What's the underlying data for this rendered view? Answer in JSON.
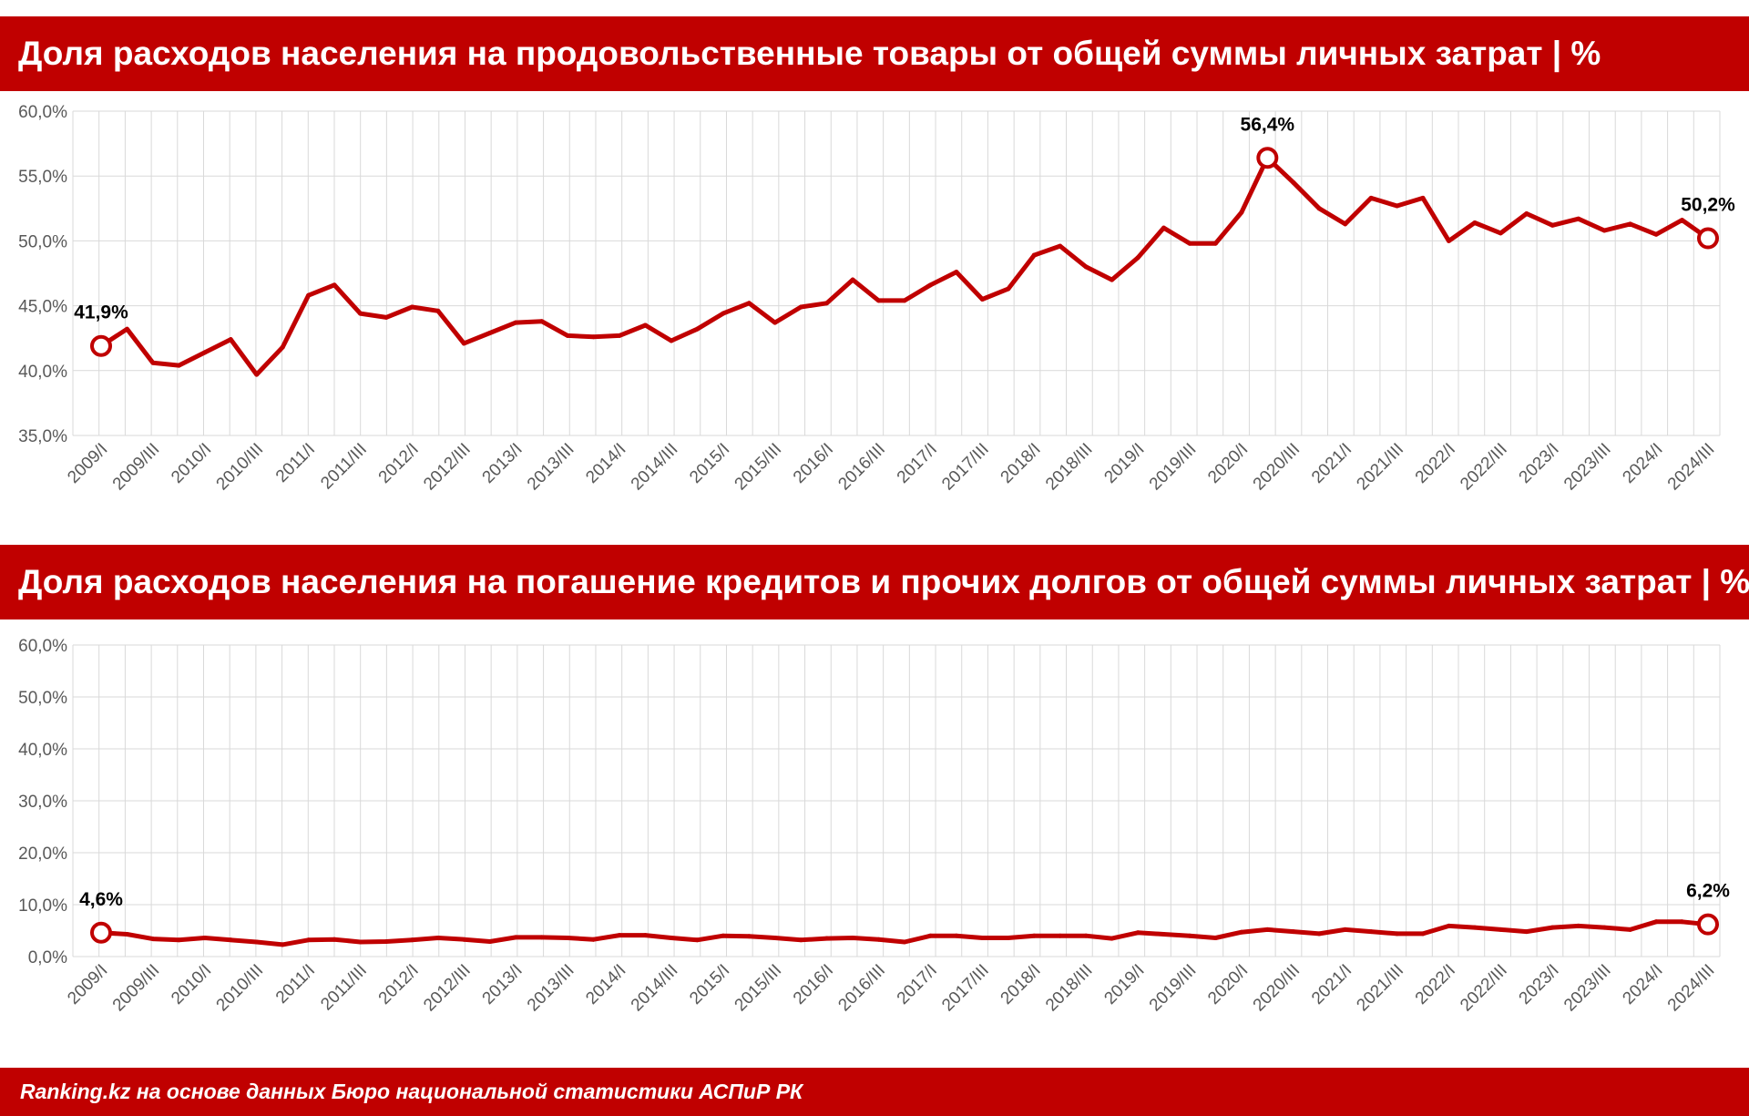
{
  "footer": "Ranking.kz на основе данных Бюро национальной статистики АСПиР РК",
  "colors": {
    "accent": "#c00000",
    "line": "#c00000",
    "grid": "#d9d9d9"
  },
  "chart_data": [
    {
      "type": "line",
      "title": "Доля расходов населения на продовольственные товары от общей суммы личных затрат | %",
      "ylim": [
        35,
        60
      ],
      "yticks": [
        "35,0%",
        "40,0%",
        "45,0%",
        "50,0%",
        "55,0%",
        "60,0%"
      ],
      "ytick_values": [
        35,
        40,
        45,
        50,
        55,
        60
      ],
      "grid": true,
      "x": [
        "2009/I",
        "2009/II",
        "2009/III",
        "2009/IV",
        "2010/I",
        "2010/II",
        "2010/III",
        "2010/IV",
        "2011/I",
        "2011/II",
        "2011/III",
        "2011/IV",
        "2012/I",
        "2012/II",
        "2012/III",
        "2012/IV",
        "2013/I",
        "2013/II",
        "2013/III",
        "2013/IV",
        "2014/I",
        "2014/II",
        "2014/III",
        "2014/IV",
        "2015/I",
        "2015/II",
        "2015/III",
        "2015/IV",
        "2016/I",
        "2016/II",
        "2016/III",
        "2016/IV",
        "2017/I",
        "2017/II",
        "2017/III",
        "2017/IV",
        "2018/I",
        "2018/II",
        "2018/III",
        "2018/IV",
        "2019/I",
        "2019/II",
        "2019/III",
        "2019/IV",
        "2020/I",
        "2020/II",
        "2020/III",
        "2020/IV",
        "2021/I",
        "2021/II",
        "2021/III",
        "2021/IV",
        "2022/I",
        "2022/II",
        "2022/III",
        "2022/IV",
        "2023/I",
        "2023/II",
        "2023/III",
        "2023/IV",
        "2024/I",
        "2024/II",
        "2024/III"
      ],
      "xtick_labels": [
        "2009/I",
        "2009/III",
        "2010/I",
        "2010/III",
        "2011/I",
        "2011/III",
        "2012/I",
        "2012/III",
        "2013/I",
        "2013/III",
        "2014/I",
        "2014/III",
        "2015/I",
        "2015/III",
        "2016/I",
        "2016/III",
        "2017/I",
        "2017/III",
        "2018/I",
        "2018/III",
        "2019/I",
        "2019/III",
        "2020/I",
        "2020/III",
        "2021/I",
        "2021/III",
        "2022/I",
        "2022/III",
        "2023/I",
        "2023/III",
        "2024/I",
        "2024/III"
      ],
      "series": [
        {
          "values": [
            41.9,
            43.2,
            40.6,
            40.4,
            41.4,
            42.4,
            39.7,
            41.8,
            45.8,
            46.6,
            44.4,
            44.1,
            44.9,
            44.6,
            42.1,
            42.9,
            43.7,
            43.8,
            42.7,
            42.6,
            42.7,
            43.5,
            42.3,
            43.2,
            44.4,
            45.2,
            43.7,
            44.9,
            45.2,
            47.0,
            45.4,
            45.4,
            46.6,
            47.6,
            45.5,
            46.3,
            48.9,
            49.6,
            48.0,
            47.0,
            48.7,
            51.0,
            49.8,
            49.8,
            52.2,
            56.4,
            54.5,
            52.5,
            51.3,
            53.3,
            52.7,
            53.3,
            50.0,
            51.4,
            50.6,
            52.1,
            51.2,
            51.7,
            50.8,
            51.3,
            50.5,
            51.6,
            50.2
          ]
        }
      ],
      "annotations": [
        {
          "index": 0,
          "label": "41,9%"
        },
        {
          "index": 45,
          "label": "56,4%"
        },
        {
          "index": 62,
          "label": "50,2%"
        }
      ]
    },
    {
      "type": "line",
      "title": "Доля расходов населения на погашение кредитов и прочих долгов от общей суммы личных затрат | %",
      "ylim": [
        0,
        60
      ],
      "yticks": [
        "0,0%",
        "10,0%",
        "20,0%",
        "30,0%",
        "40,0%",
        "50,0%",
        "60,0%"
      ],
      "ytick_values": [
        0,
        10,
        20,
        30,
        40,
        50,
        60
      ],
      "grid": true,
      "x": [
        "2009/I",
        "2009/II",
        "2009/III",
        "2009/IV",
        "2010/I",
        "2010/II",
        "2010/III",
        "2010/IV",
        "2011/I",
        "2011/II",
        "2011/III",
        "2011/IV",
        "2012/I",
        "2012/II",
        "2012/III",
        "2012/IV",
        "2013/I",
        "2013/II",
        "2013/III",
        "2013/IV",
        "2014/I",
        "2014/II",
        "2014/III",
        "2014/IV",
        "2015/I",
        "2015/II",
        "2015/III",
        "2015/IV",
        "2016/I",
        "2016/II",
        "2016/III",
        "2016/IV",
        "2017/I",
        "2017/II",
        "2017/III",
        "2017/IV",
        "2018/I",
        "2018/II",
        "2018/III",
        "2018/IV",
        "2019/I",
        "2019/II",
        "2019/III",
        "2019/IV",
        "2020/I",
        "2020/II",
        "2020/III",
        "2020/IV",
        "2021/I",
        "2021/II",
        "2021/III",
        "2021/IV",
        "2022/I",
        "2022/II",
        "2022/III",
        "2022/IV",
        "2023/I",
        "2023/II",
        "2023/III",
        "2023/IV",
        "2024/I",
        "2024/II",
        "2024/III"
      ],
      "xtick_labels": [
        "2009/I",
        "2009/III",
        "2010/I",
        "2010/III",
        "2011/I",
        "2011/III",
        "2012/I",
        "2012/III",
        "2013/I",
        "2013/III",
        "2014/I",
        "2014/III",
        "2015/I",
        "2015/III",
        "2016/I",
        "2016/III",
        "2017/I",
        "2017/III",
        "2018/I",
        "2018/III",
        "2019/I",
        "2019/III",
        "2020/I",
        "2020/III",
        "2021/I",
        "2021/III",
        "2022/I",
        "2022/III",
        "2023/I",
        "2023/III",
        "2024/I",
        "2024/III"
      ],
      "series": [
        {
          "values": [
            4.6,
            4.3,
            3.4,
            3.2,
            3.6,
            3.2,
            2.8,
            2.3,
            3.2,
            3.3,
            2.8,
            2.9,
            3.2,
            3.6,
            3.3,
            2.9,
            3.7,
            3.7,
            3.6,
            3.3,
            4.1,
            4.1,
            3.6,
            3.2,
            4.0,
            3.9,
            3.6,
            3.2,
            3.5,
            3.6,
            3.3,
            2.8,
            4.0,
            4.0,
            3.6,
            3.6,
            4.0,
            4.0,
            4.0,
            3.5,
            4.6,
            4.3,
            4.0,
            3.6,
            4.7,
            5.2,
            4.8,
            4.4,
            5.2,
            4.8,
            4.4,
            4.4,
            5.9,
            5.6,
            5.2,
            4.8,
            5.6,
            5.9,
            5.6,
            5.2,
            6.7,
            6.7,
            6.2
          ]
        }
      ],
      "annotations": [
        {
          "index": 0,
          "label": "4,6%"
        },
        {
          "index": 62,
          "label": "6,2%"
        }
      ]
    }
  ]
}
